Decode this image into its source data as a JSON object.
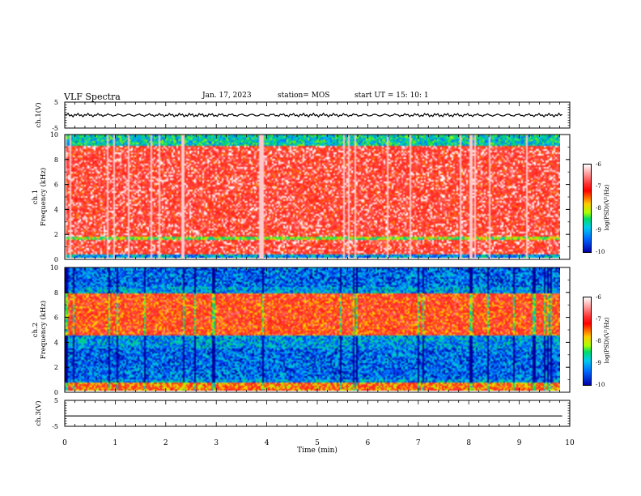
{
  "header": {
    "title": "VLF Spectra",
    "date": "Jan. 17, 2023",
    "station": "station= MOS",
    "start_ut": "start  UT =  15: 10: 1"
  },
  "colors": {
    "background": "#ffffff",
    "axis": "#000000",
    "spectrum_high": "#ff0000",
    "spectrum_low": "#0000aa"
  },
  "colorbar": {
    "label": "log(PSD)(V²/Hz)",
    "ticks": [
      "-6",
      "-7",
      "-8",
      "-9",
      "-10"
    ]
  },
  "chart_data": [
    {
      "type": "line",
      "panel": "waveform-ch1",
      "ylabel": "ch.1(V)",
      "ylim": [
        -5,
        5
      ],
      "yticks": [
        "5",
        "-5"
      ],
      "x": [
        0,
        9.85
      ],
      "y": [
        0,
        0
      ]
    },
    {
      "type": "heatmap",
      "panel": "spectrogram-ch1",
      "ylabel": "ch.1\nFrequency (kHz)",
      "ylim": [
        0,
        10
      ],
      "yticks": [
        "0",
        "2",
        "4",
        "6",
        "8",
        "10"
      ],
      "color_range": [
        -10,
        -6
      ],
      "bands": [
        {
          "f_from": 0.3,
          "f_to": 9.2,
          "level": -6.6
        },
        {
          "f_from": 1.5,
          "f_to": 1.8,
          "level": -8.0
        },
        {
          "f_from": 9.2,
          "f_to": 10,
          "level": -8.6
        }
      ]
    },
    {
      "type": "heatmap",
      "panel": "spectrogram-ch2",
      "ylabel": "ch.2\nFrequency (kHz)",
      "ylim": [
        0,
        10
      ],
      "yticks": [
        "0",
        "2",
        "4",
        "6",
        "8",
        "10"
      ],
      "color_range": [
        -10,
        -6
      ],
      "bands": [
        {
          "f_from": 4.5,
          "f_to": 8.0,
          "level": -6.9
        },
        {
          "f_from": 0.0,
          "f_to": 0.7,
          "level": -7.2
        },
        {
          "f_from": 1.0,
          "f_to": 3.5,
          "level": -9.3
        },
        {
          "f_from": 8.5,
          "f_to": 10,
          "level": -9.3
        }
      ]
    },
    {
      "type": "line",
      "panel": "waveform-ch3",
      "ylabel": "ch.3(V)",
      "ylim": [
        -5,
        5
      ],
      "yticks": [
        "5",
        "-5"
      ],
      "x": [
        0,
        9.85
      ],
      "y": [
        -1,
        -1
      ]
    }
  ],
  "xaxis": {
    "label": "Time (min)",
    "range": [
      0,
      10
    ],
    "ticks": [
      "0",
      "1",
      "2",
      "3",
      "4",
      "5",
      "6",
      "7",
      "8",
      "9",
      "10"
    ]
  }
}
